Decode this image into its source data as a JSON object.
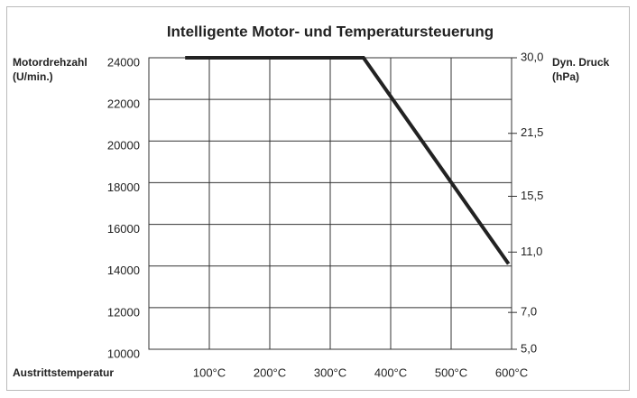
{
  "chart_data": {
    "type": "line",
    "title": "Intelligente Motor- und Temperatursteuerung",
    "y_label": [
      "Motordrehzahl",
      "(U/min.)"
    ],
    "y2_label": [
      "Dyn. Druck",
      "(hPa)"
    ],
    "x_label": "Austrittstemperatur",
    "x": [
      60,
      355,
      595
    ],
    "series": [
      {
        "color": "#222222",
        "values": [
          24000,
          24000,
          14100
        ]
      }
    ],
    "xlim": [
      0,
      600
    ],
    "xticks": [
      {
        "value": 100,
        "label": "100°C"
      },
      {
        "value": 200,
        "label": "200°C"
      },
      {
        "value": 300,
        "label": "300°C"
      },
      {
        "value": 400,
        "label": "400°C"
      },
      {
        "value": 500,
        "label": "500°C"
      },
      {
        "value": 600,
        "label": "600°C"
      }
    ],
    "ylim": [
      10000,
      24000
    ],
    "yticks": [
      10000,
      12000,
      14000,
      16000,
      18000,
      20000,
      22000,
      24000
    ],
    "y2lim": [
      5,
      30
    ],
    "y2scale": "sqrt",
    "y2ticks": [
      {
        "value": 5,
        "label": "5,0"
      },
      {
        "value": 7,
        "label": "7,0"
      },
      {
        "value": 11,
        "label": "11,0"
      },
      {
        "value": 15.5,
        "label": "15,5"
      },
      {
        "value": 21.5,
        "label": "21,5"
      },
      {
        "value": 30,
        "label": "30,0"
      }
    ],
    "grid": true
  }
}
